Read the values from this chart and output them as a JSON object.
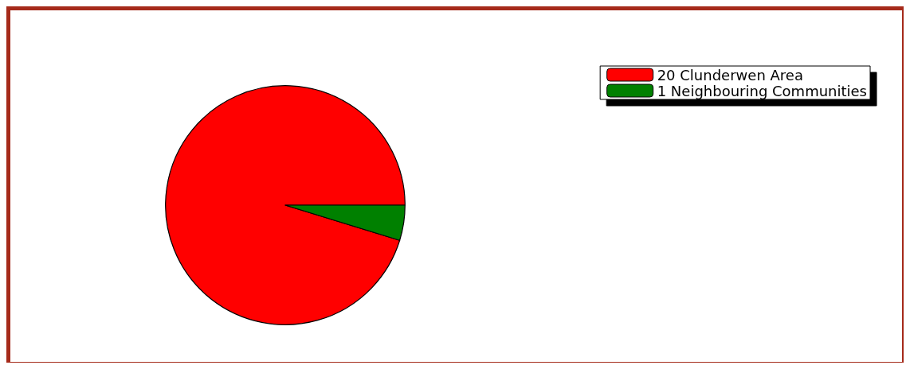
{
  "chart_data": {
    "type": "pie",
    "categories": [
      "20 Clunderwen Area",
      "1 Neighbouring Communities"
    ],
    "values": [
      20,
      1
    ],
    "colors": [
      "#ff0000",
      "#008000"
    ],
    "legend": "top right"
  }
}
